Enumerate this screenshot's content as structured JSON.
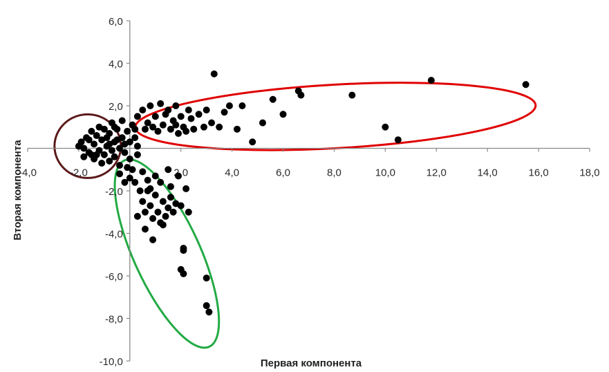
{
  "chart_data": {
    "type": "scatter",
    "title": "",
    "xlabel": "Первая компонента",
    "ylabel": "Вторая компонента",
    "xlim": [
      -4,
      18
    ],
    "ylim": [
      -10,
      6
    ],
    "x_ticks": [
      "-4,0",
      "-2,0",
      "0,0",
      "2,0",
      "4,0",
      "6,0",
      "8,0",
      "10,0",
      "12,0",
      "14,0",
      "16,0",
      "18,0"
    ],
    "y_ticks": [
      "-10,0",
      "-8,0",
      "-6,0",
      "-4,0",
      "-2,0",
      "0,0",
      "2,0",
      "4,0",
      "6,0"
    ],
    "visible_x_ticks": [
      "-4,0",
      "-2,0",
      "2,0",
      "4,0",
      "6,0",
      "8,0",
      "10,0",
      "12,0",
      "14,0",
      "16,0",
      "18,0"
    ],
    "visible_y_ticks": [
      "-10,0",
      "-8,0",
      "-6,0",
      "-4,0",
      "-2,0",
      "2,0",
      "4,0",
      "6,0"
    ],
    "grid": false,
    "point_color": "#000000",
    "series": [
      {
        "values": [
          [
            -2.0,
            0.1
          ],
          [
            -1.9,
            0.3
          ],
          [
            -1.8,
            0.0
          ],
          [
            -1.7,
            0.5
          ],
          [
            -1.6,
            -0.2
          ],
          [
            -1.5,
            0.8
          ],
          [
            -1.4,
            0.2
          ],
          [
            -1.4,
            -0.5
          ],
          [
            -1.3,
            0.6
          ],
          [
            -1.2,
            -0.1
          ],
          [
            -1.2,
            1.0
          ],
          [
            -1.1,
            0.4
          ],
          [
            -1.0,
            -0.3
          ],
          [
            -1.0,
            0.9
          ],
          [
            -0.9,
            0.1
          ],
          [
            -0.8,
            -0.6
          ],
          [
            -0.8,
            0.7
          ],
          [
            -0.7,
            1.2
          ],
          [
            -0.6,
            0.3
          ],
          [
            -0.6,
            -0.4
          ],
          [
            -0.5,
            0.9
          ],
          [
            -0.4,
            0.0
          ],
          [
            -0.4,
            -0.8
          ],
          [
            -0.3,
            1.3
          ],
          [
            -0.3,
            0.5
          ],
          [
            -0.2,
            -0.2
          ],
          [
            -0.1,
            0.8
          ],
          [
            0.0,
            -0.5
          ],
          [
            0.0,
            0.3
          ],
          [
            0.1,
            1.1
          ],
          [
            0.1,
            -1.0
          ],
          [
            0.2,
            0.5
          ],
          [
            0.3,
            -0.3
          ],
          [
            -1.6,
            0.4
          ],
          [
            -1.1,
            -0.7
          ],
          [
            -0.9,
            0.5
          ],
          [
            -0.7,
            -0.1
          ],
          [
            -0.5,
            0.4
          ],
          [
            -0.2,
            0.2
          ],
          [
            -1.3,
            -0.3
          ],
          [
            -0.8,
            0.2
          ],
          [
            -0.6,
            1.0
          ],
          [
            0.2,
            0.9
          ],
          [
            -0.4,
            -1.2
          ],
          [
            0.0,
            -1.4
          ],
          [
            -1.5,
            -0.3
          ],
          [
            -0.1,
            -0.9
          ],
          [
            0.3,
            0.1
          ],
          [
            -1.8,
            -0.4
          ],
          [
            -0.2,
            -1.6
          ]
        ]
      },
      {
        "values": [
          [
            0.3,
            1.5
          ],
          [
            0.5,
            1.8
          ],
          [
            0.7,
            1.2
          ],
          [
            0.8,
            2.0
          ],
          [
            1.0,
            1.5
          ],
          [
            1.1,
            0.8
          ],
          [
            1.2,
            2.1
          ],
          [
            1.3,
            1.1
          ],
          [
            1.5,
            1.8
          ],
          [
            1.6,
            0.9
          ],
          [
            1.7,
            1.3
          ],
          [
            1.8,
            2.0
          ],
          [
            1.9,
            0.7
          ],
          [
            2.0,
            1.5
          ],
          [
            2.1,
            1.0
          ],
          [
            2.3,
            1.8
          ],
          [
            2.4,
            1.4
          ],
          [
            2.5,
            0.9
          ],
          [
            2.7,
            1.6
          ],
          [
            2.9,
            1.0
          ],
          [
            3.0,
            1.8
          ],
          [
            3.2,
            1.2
          ],
          [
            3.3,
            3.5
          ],
          [
            3.5,
            1.0
          ],
          [
            3.7,
            1.7
          ],
          [
            3.9,
            2.0
          ],
          [
            4.2,
            0.9
          ],
          [
            4.4,
            2.0
          ],
          [
            4.8,
            0.3
          ],
          [
            5.2,
            1.2
          ],
          [
            5.6,
            2.3
          ],
          [
            6.0,
            1.6
          ],
          [
            6.6,
            2.7
          ],
          [
            6.7,
            2.5
          ],
          [
            8.7,
            2.5
          ],
          [
            10.0,
            1.0
          ],
          [
            10.5,
            0.4
          ],
          [
            11.8,
            3.2
          ],
          [
            15.5,
            3.0
          ],
          [
            0.9,
            1.0
          ],
          [
            1.4,
            1.6
          ],
          [
            2.2,
            0.8
          ],
          [
            0.6,
            0.9
          ],
          [
            1.8,
            1.1
          ]
        ]
      },
      {
        "values": [
          [
            0.2,
            -1.6
          ],
          [
            0.4,
            -2.0
          ],
          [
            0.5,
            -2.5
          ],
          [
            0.6,
            -3.0
          ],
          [
            0.6,
            -3.8
          ],
          [
            0.7,
            -1.5
          ],
          [
            0.8,
            -2.7
          ],
          [
            0.9,
            -3.3
          ],
          [
            0.9,
            -4.3
          ],
          [
            1.0,
            -2.2
          ],
          [
            1.1,
            -3.0
          ],
          [
            1.2,
            -1.6
          ],
          [
            1.2,
            -3.5
          ],
          [
            1.3,
            -2.5
          ],
          [
            1.4,
            -3.2
          ],
          [
            1.5,
            -2.8
          ],
          [
            1.6,
            -1.8
          ],
          [
            1.7,
            -3.0
          ],
          [
            1.8,
            -2.6
          ],
          [
            2.0,
            -2.7
          ],
          [
            2.1,
            -4.7
          ],
          [
            2.0,
            -5.7
          ],
          [
            2.1,
            -5.9
          ],
          [
            2.3,
            -3.0
          ],
          [
            3.0,
            -6.1
          ],
          [
            3.0,
            -7.4
          ],
          [
            3.1,
            -7.7
          ],
          [
            0.3,
            -3.2
          ],
          [
            0.7,
            -2.0
          ],
          [
            1.0,
            -1.3
          ],
          [
            1.5,
            -1.0
          ],
          [
            1.9,
            -1.3
          ],
          [
            2.2,
            -1.9
          ],
          [
            0.5,
            -1.1
          ],
          [
            1.3,
            -3.6
          ],
          [
            1.6,
            -2.3
          ],
          [
            0.8,
            -1.9
          ],
          [
            2.1,
            -4.8
          ]
        ]
      }
    ],
    "ellipse_colors": [
      "#5c1a1a",
      "#e00000",
      "#22aa44"
    ]
  }
}
